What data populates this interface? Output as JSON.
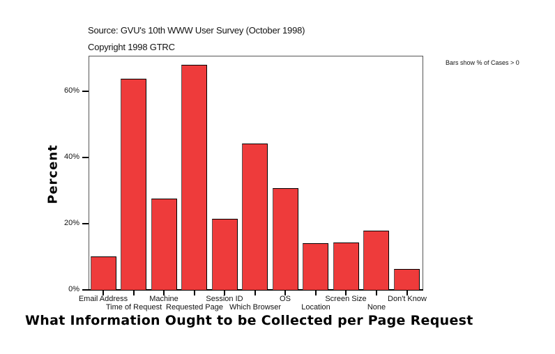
{
  "header": {
    "source": "Source: GVU's 10th WWW User Survey (October 1998)",
    "copyright": "Copyright 1998 GTRC",
    "note": "Bars show % of Cases > 0"
  },
  "chart_data": {
    "type": "bar",
    "title": "What Information Ought to be Collected per Page Request",
    "subtitle": "Source: GVU's 10th WWW User Survey (October 1998)",
    "xlabel": "What Information Ought to be Collected per Page Request",
    "ylabel": "Percent",
    "categories": [
      "Email Address",
      "Time of Request",
      "Machine",
      "Requested Page",
      "Session ID",
      "Which Browser",
      "OS",
      "Location",
      "Screen Size",
      "None",
      "Don't Know"
    ],
    "values": [
      10.1,
      63.8,
      27.6,
      68.0,
      21.5,
      44.2,
      30.7,
      14.1,
      14.3,
      17.9,
      6.3
    ],
    "yticks": [
      "0%",
      "20%",
      "40%",
      "60%"
    ],
    "ylim": [
      0,
      70.7
    ],
    "grid": false,
    "legend": "none",
    "annotation": "Bars show % of Cases > 0",
    "bar_color": "#ee3b3b"
  }
}
